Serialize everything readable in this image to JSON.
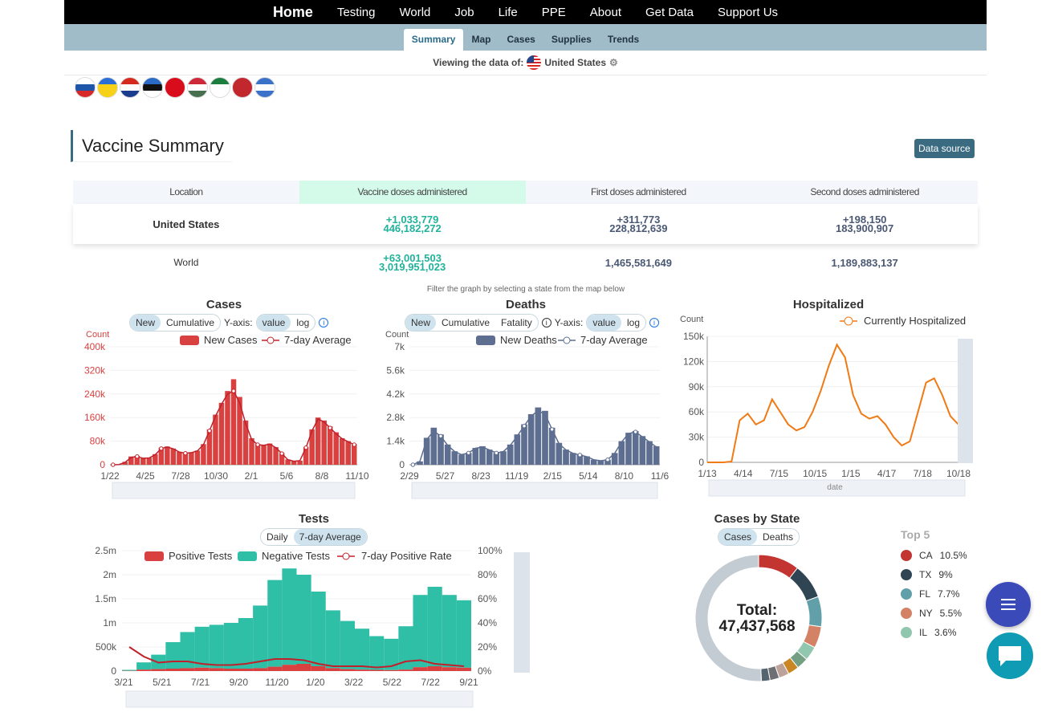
{
  "topnav": [
    "Home",
    "Testing",
    "World",
    "Job",
    "Life",
    "PPE",
    "About",
    "Get Data",
    "Support Us"
  ],
  "subnav": [
    "Summary",
    "Map",
    "Cases",
    "Supplies",
    "Trends"
  ],
  "viewing": {
    "label": "Viewing the data of:",
    "country": "United States"
  },
  "flags": [
    {
      "name": "slovenia",
      "c1": "#fff",
      "c2": "#1e55a8",
      "c3": "#d72828"
    },
    {
      "name": "ukraine",
      "c1": "#2b6fd6",
      "c2": "#f7d117",
      "c3": "#f7d117"
    },
    {
      "name": "croatia",
      "c1": "#d52b1e",
      "c2": "#fff",
      "c3": "#1a3d8f"
    },
    {
      "name": "estonia",
      "c1": "#2c6bc5",
      "c2": "#111",
      "c3": "#fff"
    },
    {
      "name": "albania",
      "c1": "#d80c1b",
      "c2": "#d80c1b",
      "c3": "#d80c1b"
    },
    {
      "name": "hungary",
      "c1": "#ce2939",
      "c2": "#fff",
      "c3": "#477050"
    },
    {
      "name": "algeria",
      "c1": "#1b7d3e",
      "c2": "#fff",
      "c3": "#fff"
    },
    {
      "name": "morocco",
      "c1": "#c1272d",
      "c2": "#c1272d",
      "c3": "#c1272d"
    },
    {
      "name": "greece",
      "c1": "#3b72c9",
      "c2": "#fff",
      "c3": "#3b72c9"
    }
  ],
  "section": {
    "title": "Vaccine Summary",
    "datasource": "Data source"
  },
  "vaccine": {
    "headers": [
      "Location",
      "Vaccine doses administered",
      "First doses administered",
      "Second doses administered"
    ],
    "us": {
      "location": "United States",
      "doses_delta": "+1,033,779",
      "doses": "446,182,272",
      "first_delta": "+311,773",
      "first": "228,812,639",
      "second_delta": "+198,150",
      "second": "183,900,907"
    },
    "world": {
      "location": "World",
      "doses_delta": "+63,001,503",
      "doses": "3,019,951,023",
      "first": "1,465,581,649",
      "second": "1,189,883,137"
    }
  },
  "filter_note": "Filter the graph by selecting a state from the map below",
  "cases_chart": {
    "title": "Cases",
    "mode_new": "New",
    "mode_cum": "Cumulative",
    "yaxis": "Y-axis:",
    "scale_value": "value",
    "scale_log": "log",
    "legend_bar": "New Cases",
    "legend_line": "7-day Average",
    "ylabel": "Count"
  },
  "deaths_chart": {
    "title": "Deaths",
    "mode_new": "New",
    "mode_cum": "Cumulative",
    "mode_fat": "Fatality",
    "yaxis": "Y-axis:",
    "scale_value": "value",
    "scale_log": "log",
    "legend_bar": "New Deaths",
    "legend_line": "7-day Average",
    "ylabel": "Count"
  },
  "hosp_chart": {
    "title": "Hospitalized",
    "legend": "Currently Hospitalized",
    "ylabel": "Count",
    "xlabel": "date"
  },
  "tests_chart": {
    "title": "Tests",
    "mode_daily": "Daily",
    "mode_avg": "7-day Average",
    "legend_pos": "Positive Tests",
    "legend_neg": "Negative Tests",
    "legend_rate": "7-day Positive Rate"
  },
  "state_chart": {
    "title": "Cases by State",
    "tab_cases": "Cases",
    "tab_deaths": "Deaths",
    "total_label": "Total:",
    "total_value": "47,437,568",
    "top_label": "Top 5"
  },
  "chart_data": [
    {
      "type": "bar",
      "title": "Cases",
      "ylabel": "Count",
      "ylim": [
        0,
        400000
      ],
      "yticks": [
        "0",
        "80k",
        "160k",
        "240k",
        "320k",
        "400k"
      ],
      "xticks": [
        "1/22",
        "4/25",
        "7/28",
        "10/30",
        "2/1",
        "5/6",
        "8/8",
        "11/10"
      ],
      "series": [
        {
          "name": "New Cases",
          "values": [
            0,
            1000,
            10000,
            28000,
            30000,
            22000,
            24000,
            36000,
            58000,
            62000,
            55000,
            44000,
            40000,
            42000,
            48000,
            70000,
            120000,
            170000,
            210000,
            250000,
            290000,
            230000,
            150000,
            90000,
            70000,
            68000,
            72000,
            60000,
            40000,
            18000,
            12000,
            14000,
            60000,
            120000,
            160000,
            150000,
            130000,
            110000,
            90000,
            80000,
            70000
          ]
        },
        {
          "name": "7-day Average",
          "values": [
            0,
            800,
            8000,
            25000,
            28000,
            22000,
            23000,
            34000,
            55000,
            60000,
            54000,
            43000,
            39000,
            41000,
            47000,
            68000,
            115000,
            165000,
            205000,
            240000,
            250000,
            210000,
            140000,
            85000,
            68000,
            66000,
            70000,
            58000,
            38000,
            17000,
            12000,
            14000,
            58000,
            115000,
            155000,
            145000,
            125000,
            105000,
            88000,
            78000,
            68000
          ]
        }
      ]
    },
    {
      "type": "bar",
      "title": "Deaths",
      "ylabel": "Count",
      "ylim": [
        0,
        7000
      ],
      "yticks": [
        "0",
        "1.4k",
        "2.8k",
        "4.2k",
        "5.6k",
        "7k"
      ],
      "xticks": [
        "2/29",
        "5/27",
        "8/23",
        "11/19",
        "2/15",
        "5/14",
        "8/10",
        "11/6"
      ],
      "series": [
        {
          "name": "New Deaths",
          "values": [
            0,
            200,
            1600,
            2200,
            1800,
            1200,
            800,
            600,
            700,
            1000,
            1100,
            900,
            700,
            800,
            1200,
            1800,
            2400,
            3000,
            3400,
            3200,
            2200,
            1300,
            900,
            700,
            600,
            500,
            300,
            250,
            300,
            700,
            1400,
            1900,
            2000,
            1700,
            1400,
            1100
          ]
        },
        {
          "name": "7-day Average",
          "values": [
            0,
            200,
            1500,
            2000,
            1700,
            1150,
            780,
            600,
            700,
            980,
            1050,
            880,
            700,
            780,
            1150,
            1700,
            2300,
            2900,
            3200,
            3000,
            2100,
            1250,
            880,
            680,
            580,
            480,
            300,
            240,
            300,
            680,
            1350,
            1850,
            1950,
            1650,
            1350,
            1050
          ]
        }
      ]
    },
    {
      "type": "line",
      "title": "Hospitalized",
      "ylabel": "Count",
      "xlabel": "date",
      "ylim": [
        0,
        150000
      ],
      "yticks": [
        "0",
        "30k",
        "60k",
        "90k",
        "120k",
        "150k"
      ],
      "xticks": [
        "1/13",
        "4/14",
        "7/15",
        "10/15",
        "1/15",
        "4/17",
        "7/18",
        "10/18"
      ],
      "series": [
        {
          "name": "Currently Hospitalized",
          "values": [
            0,
            0,
            0,
            1000,
            50000,
            58000,
            45000,
            50000,
            75000,
            60000,
            45000,
            38000,
            42000,
            60000,
            85000,
            115000,
            140000,
            125000,
            80000,
            58000,
            52000,
            55000,
            45000,
            30000,
            20000,
            25000,
            60000,
            95000,
            100000,
            80000,
            55000,
            45000
          ]
        }
      ]
    },
    {
      "type": "bar",
      "title": "Tests",
      "yticks": [
        "0",
        "500k",
        "1m",
        "1.5m",
        "2m",
        "2.5m"
      ],
      "y2ticks": [
        "0%",
        "20%",
        "40%",
        "60%",
        "80%",
        "100%"
      ],
      "ylim": [
        0,
        2500000
      ],
      "xticks": [
        "3/21",
        "5/21",
        "7/21",
        "9/20",
        "11/20",
        "1/20",
        "3/22",
        "5/22",
        "7/22",
        "9/21"
      ],
      "series": [
        {
          "name": "Positive Tests",
          "values": [
            5000,
            30000,
            40000,
            50000,
            60000,
            70000,
            60000,
            50000,
            50000,
            60000,
            90000,
            130000,
            150000,
            100000,
            60000,
            40000,
            30000,
            25000,
            20000,
            30000,
            80000,
            100000,
            80000,
            70000
          ]
        },
        {
          "name": "Negative Tests",
          "values": [
            20000,
            150000,
            300000,
            550000,
            750000,
            850000,
            900000,
            950000,
            1050000,
            1300000,
            1800000,
            2000000,
            1850000,
            1550000,
            1200000,
            1000000,
            850000,
            700000,
            650000,
            900000,
            1500000,
            1650000,
            1500000,
            1400000
          ]
        },
        {
          "name": "7-day Positive Rate",
          "values": [
            20,
            12,
            7,
            8,
            8,
            6,
            5,
            5,
            6,
            8,
            10,
            10,
            9,
            6,
            4,
            4,
            4,
            3,
            4,
            8,
            9,
            6,
            5,
            4
          ]
        }
      ]
    },
    {
      "type": "pie",
      "title": "Cases by State",
      "total": "47,437,568",
      "slices": [
        {
          "label": "CA",
          "value": 10.5,
          "color": "#c23531"
        },
        {
          "label": "TX",
          "value": 9,
          "color": "#2f4554"
        },
        {
          "label": "FL",
          "value": 7.7,
          "color": "#61a0a8"
        },
        {
          "label": "NY",
          "value": 5.5,
          "color": "#d48265"
        },
        {
          "label": "IL",
          "value": 3.6,
          "color": "#91c7ae"
        },
        {
          "label": "",
          "value": 3.0,
          "color": "#749f83"
        },
        {
          "label": "",
          "value": 2.8,
          "color": "#ca8622"
        },
        {
          "label": "",
          "value": 2.6,
          "color": "#bda29a"
        },
        {
          "label": "",
          "value": 2.4,
          "color": "#6e7074"
        },
        {
          "label": "",
          "value": 2.2,
          "color": "#546570"
        },
        {
          "label": "",
          "value": 50.7,
          "color": "#c4ccd3"
        }
      ]
    }
  ],
  "top5": [
    {
      "state": "CA",
      "pct": "10.5%",
      "color": "#c23531"
    },
    {
      "state": "TX",
      "pct": "9%",
      "color": "#2f4554"
    },
    {
      "state": "FL",
      "pct": "7.7%",
      "color": "#61a0a8"
    },
    {
      "state": "NY",
      "pct": "5.5%",
      "color": "#d48265"
    },
    {
      "state": "IL",
      "pct": "3.6%",
      "color": "#91c7ae"
    }
  ],
  "colors": {
    "case_red": "#d94040",
    "death_slate": "#5d6e91",
    "hosp_orange": "#f07a14",
    "neg_teal": "#2fbfa6",
    "accent": "#3a6b80",
    "chat": "#0f9bb3",
    "menu": "#3a4ab8"
  }
}
